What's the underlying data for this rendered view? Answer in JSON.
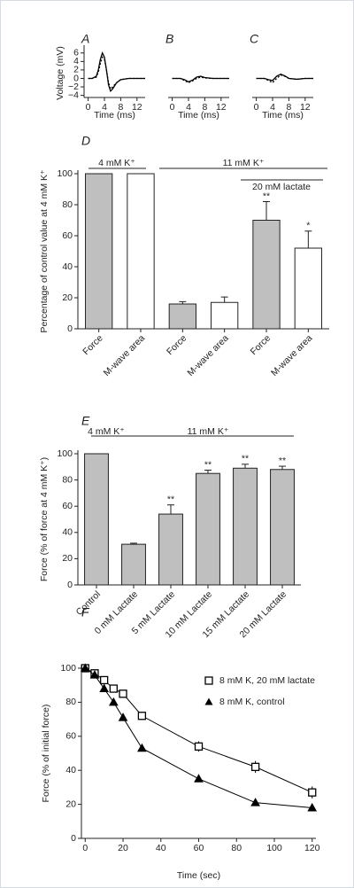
{
  "chart_data": [
    {
      "type": "line",
      "label": "A",
      "xlabel": "Time (ms)",
      "ylabel": "Voltage (mV)",
      "x": [
        0,
        1,
        2,
        2.5,
        3,
        3.5,
        4,
        4.5,
        5,
        5.5,
        6,
        7,
        8,
        10,
        12,
        14
      ],
      "series": [
        {
          "color": "#000000",
          "values": [
            0,
            0,
            0.5,
            2,
            4.5,
            6,
            5,
            2,
            -1.5,
            -3,
            -2.5,
            -1,
            -0.3,
            0,
            0,
            0
          ]
        },
        {
          "color": "#000000",
          "dash": true,
          "values": [
            0,
            0,
            0.3,
            1.5,
            3.5,
            5,
            4.5,
            2,
            -1,
            -2.5,
            -2,
            -1,
            -0.3,
            0,
            0,
            0
          ]
        }
      ],
      "xlim": [
        -1,
        14
      ],
      "ylim": [
        -4.5,
        7
      ],
      "xticks": [
        0,
        4,
        8,
        12
      ],
      "yticks": [
        {
          "value": -4,
          "label": "−4"
        },
        {
          "value": -2,
          "label": "−2"
        },
        0,
        2,
        4,
        6
      ]
    },
    {
      "type": "line",
      "label": "B",
      "xlabel": "Time (ms)",
      "yaxis": false,
      "x": [
        0,
        2,
        3,
        4,
        5,
        6,
        7,
        8,
        10,
        12,
        14
      ],
      "series": [
        {
          "color": "#000000",
          "values": [
            0,
            0,
            -0.3,
            -0.8,
            -0.4,
            0.3,
            0.5,
            0.2,
            0,
            0,
            0
          ]
        },
        {
          "color": "#000000",
          "dash": true,
          "values": [
            0,
            0,
            -0.5,
            -1,
            -0.6,
            0,
            0.3,
            0.1,
            0,
            0,
            0
          ]
        }
      ],
      "xlim": [
        -1,
        14
      ],
      "ylim": [
        -4.5,
        7
      ],
      "xticks": [
        0,
        4,
        8,
        12
      ]
    },
    {
      "type": "line",
      "label": "C",
      "xlabel": "Time (ms)",
      "yaxis": false,
      "x": [
        0,
        2,
        3,
        4,
        5,
        6,
        7,
        8,
        10,
        12,
        14
      ],
      "series": [
        {
          "color": "#000000",
          "values": [
            0,
            0,
            -0.3,
            -0.5,
            0.5,
            1,
            0.6,
            0,
            -0.2,
            0,
            0
          ]
        },
        {
          "color": "#000000",
          "dash": true,
          "values": [
            0,
            0,
            -0.5,
            -1,
            0,
            0.8,
            0.5,
            0,
            -0.2,
            0,
            0
          ]
        }
      ],
      "xlim": [
        -1,
        14
      ],
      "ylim": [
        -4.5,
        7
      ],
      "xticks": [
        0,
        4,
        8,
        12
      ]
    },
    {
      "type": "bar",
      "label": "D",
      "ylabel": "Percentage of control value at 4 mM K⁺",
      "categories": [
        "Force",
        "M-wave area",
        "Force",
        "M-wave area",
        "Force",
        "M-wave area"
      ],
      "values": [
        100,
        100,
        16,
        17,
        70,
        52
      ],
      "errors": [
        0,
        0,
        1.5,
        3.5,
        12,
        11
      ],
      "colors": [
        "#bfbfbf",
        "#ffffff",
        "#bfbfbf",
        "#ffffff",
        "#bfbfbf",
        "#ffffff"
      ],
      "significance": [
        null,
        null,
        null,
        null,
        "**",
        "*"
      ],
      "annotations": [
        "4 mM K⁺",
        "11 mM K⁺",
        "20 mM lactate"
      ],
      "ylim": [
        0,
        100
      ],
      "yticks": [
        0,
        20,
        40,
        60,
        80,
        100
      ]
    },
    {
      "type": "bar",
      "label": "E",
      "ylabel": "Force (% of force at 4 mM K⁺)",
      "categories": [
        "Control",
        "0 mM Lactate",
        "5 mM Lactate",
        "10 mM Lactate",
        "15 mM Lactate",
        "20 mM Lactate"
      ],
      "values": [
        100,
        31,
        54,
        85,
        89,
        88
      ],
      "errors": [
        0,
        0.8,
        7,
        2.5,
        3,
        2.5
      ],
      "color": "#bfbfbf",
      "significance": [
        null,
        null,
        "**",
        "**",
        "**",
        "**"
      ],
      "annotations": [
        "4 mM K⁺",
        "11 mM K⁺"
      ],
      "ylim": [
        0,
        100
      ],
      "yticks": [
        0,
        20,
        40,
        60,
        80,
        100
      ]
    },
    {
      "type": "line",
      "label": "F",
      "xlabel": "Time (sec)",
      "ylabel": "Force (% of initial force)",
      "x": [
        0,
        5,
        10,
        15,
        20,
        30,
        60,
        90,
        120
      ],
      "series": [
        {
          "name": "8 mM K, 20 mM lactate",
          "marker": "square",
          "color": "#000000",
          "fill": "#ffffff",
          "values": [
            100,
            97,
            93,
            88,
            85,
            72,
            54,
            42,
            27
          ],
          "errors": [
            1,
            1,
            1.5,
            1,
            1.5,
            1.5,
            3,
            3.5,
            3.5
          ]
        },
        {
          "name": "8 mM K, control",
          "marker": "triangle",
          "color": "#000000",
          "fill": "#000000",
          "values": [
            100,
            96,
            88,
            80,
            71,
            53,
            35,
            21,
            18
          ],
          "errors": [
            1,
            1,
            1,
            1,
            1,
            1,
            1.5,
            1.5,
            2
          ]
        }
      ],
      "legend": "upper right",
      "xlim": [
        -2,
        122
      ],
      "ylim": [
        0,
        100
      ],
      "xticks": [
        0,
        20,
        40,
        60,
        80,
        100,
        120
      ],
      "yticks": [
        0,
        20,
        40,
        60,
        80,
        100
      ]
    }
  ]
}
